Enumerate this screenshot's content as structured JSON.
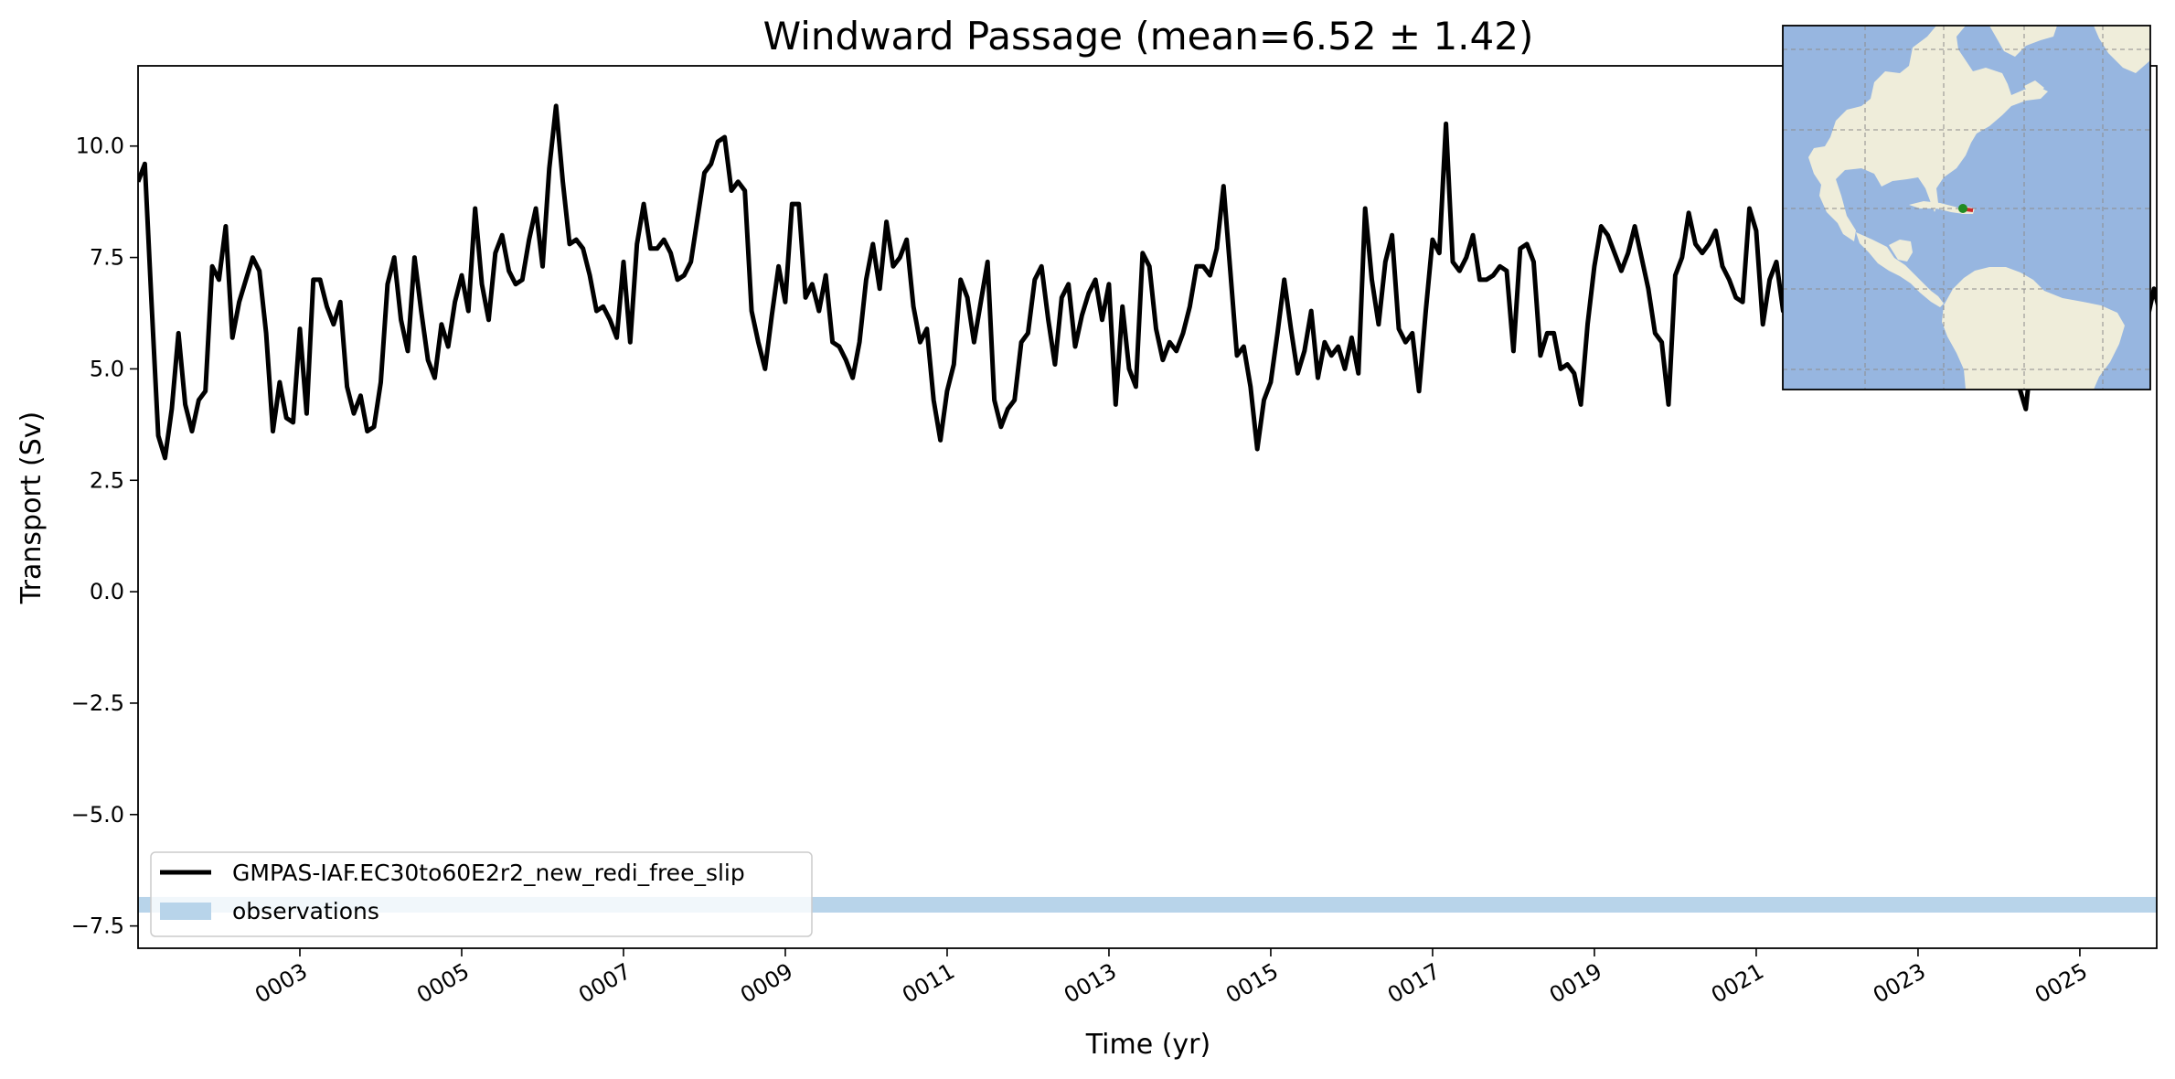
{
  "chart_data": {
    "type": "line",
    "title": "Windward Passage (mean=6.52 ± 1.42)",
    "xlabel": "Time (yr)",
    "ylabel": "Transport (Sv)",
    "xlim": [
      1.0,
      25.95
    ],
    "ylim": [
      -8.0,
      11.8
    ],
    "xticks": [
      3,
      5,
      7,
      9,
      11,
      13,
      15,
      17,
      19,
      21,
      23,
      25
    ],
    "xtick_labels": [
      "0003",
      "0005",
      "0007",
      "0009",
      "0011",
      "0013",
      "0015",
      "0017",
      "0019",
      "0021",
      "0023",
      "0025"
    ],
    "yticks": [
      -7.5,
      -5.0,
      -2.5,
      0.0,
      2.5,
      5.0,
      7.5,
      10.0
    ],
    "ytick_labels": [
      "−7.5",
      "−5.0",
      "−2.5",
      "0.0",
      "2.5",
      "5.0",
      "7.5",
      "10.0"
    ],
    "legend_position": "lower-left",
    "grid": false,
    "series": [
      {
        "name": "GMPAS-IAF.EC30to60E2r2_new_redi_free_slip",
        "color": "#000000",
        "x_start": 1.0,
        "x_step": 0.08333,
        "values": [
          9.2,
          9.6,
          6.5,
          3.5,
          3.0,
          4.1,
          5.8,
          4.2,
          3.6,
          4.3,
          4.5,
          7.3,
          7.0,
          8.2,
          5.7,
          6.5,
          7.0,
          7.5,
          7.2,
          5.8,
          3.6,
          4.7,
          3.9,
          3.8,
          5.9,
          4.0,
          7.0,
          7.0,
          6.4,
          6.0,
          6.5,
          4.6,
          4.0,
          4.4,
          3.6,
          3.7,
          4.7,
          6.9,
          7.5,
          6.1,
          5.4,
          7.5,
          6.3,
          5.2,
          4.8,
          6.0,
          5.5,
          6.5,
          7.1,
          6.3,
          8.6,
          6.9,
          6.1,
          7.6,
          8.0,
          7.2,
          6.9,
          7.0,
          7.9,
          8.6,
          7.3,
          9.5,
          10.9,
          9.2,
          7.8,
          7.9,
          7.7,
          7.1,
          6.3,
          6.4,
          6.1,
          5.7,
          7.4,
          5.6,
          7.8,
          8.7,
          7.7,
          7.7,
          7.9,
          7.6,
          7.0,
          7.1,
          7.4,
          8.4,
          9.4,
          9.6,
          10.1,
          10.2,
          9.0,
          9.2,
          9.0,
          6.3,
          5.6,
          5.0,
          6.2,
          7.3,
          6.5,
          8.7,
          8.7,
          6.6,
          6.9,
          6.3,
          7.1,
          5.6,
          5.5,
          5.2,
          4.8,
          5.6,
          7.0,
          7.8,
          6.8,
          8.3,
          7.3,
          7.5,
          7.9,
          6.4,
          5.6,
          5.9,
          4.3,
          3.4,
          4.5,
          5.1,
          7.0,
          6.6,
          5.6,
          6.5,
          7.4,
          4.3,
          3.7,
          4.1,
          4.3,
          5.6,
          5.8,
          7.0,
          7.3,
          6.1,
          5.1,
          6.6,
          6.9,
          5.5,
          6.2,
          6.7,
          7.0,
          6.1,
          6.9,
          4.2,
          6.4,
          5.0,
          4.6,
          7.6,
          7.3,
          5.9,
          5.2,
          5.6,
          5.4,
          5.8,
          6.4,
          7.3,
          7.3,
          7.1,
          7.7,
          9.1,
          7.2,
          5.3,
          5.5,
          4.6,
          3.2,
          4.3,
          4.7,
          5.8,
          7.0,
          5.9,
          4.9,
          5.4,
          6.3,
          4.8,
          5.6,
          5.3,
          5.5,
          5.0,
          5.7,
          4.9,
          8.6,
          7.0,
          6.0,
          7.4,
          8.0,
          5.9,
          5.6,
          5.8,
          4.5,
          6.3,
          7.9,
          7.6,
          10.5,
          7.4,
          7.2,
          7.5,
          8.0,
          7.0,
          7.0,
          7.1,
          7.3,
          7.2,
          5.4,
          7.7,
          7.8,
          7.4,
          5.3,
          5.8,
          5.8,
          5.0,
          5.1,
          4.9,
          4.2,
          6.0,
          7.3,
          8.2,
          8.0,
          7.6,
          7.2,
          7.6,
          8.2,
          7.5,
          6.8,
          5.8,
          5.6,
          4.2,
          7.1,
          7.5,
          8.5,
          7.8,
          7.6,
          7.8,
          8.1,
          7.3,
          7.0,
          6.6,
          6.5,
          8.6,
          8.1,
          6.0,
          7.0,
          7.4,
          6.3,
          6.9,
          7.2,
          6.8,
          7.5,
          7.0,
          6.4,
          6.9,
          7.6,
          7.3,
          7.0,
          6.5,
          7.2,
          6.8,
          6.2,
          7.0,
          6.4,
          5.7,
          6.9,
          7.3,
          6.1,
          6.6,
          5.8,
          6.5,
          7.1,
          6.4,
          5.5,
          6.0,
          7.2,
          6.7,
          6.1,
          5.3,
          5.9,
          6.4,
          5.1,
          4.6,
          4.1,
          5.5,
          6.1,
          6.9,
          6.4,
          5.7,
          6.6,
          7.0,
          6.2,
          5.8,
          6.7,
          7.1,
          6.5,
          5.9,
          6.3,
          7.0,
          6.4,
          5.6,
          6.1,
          6.8,
          6.2,
          6.3,
          5.6
        ]
      }
    ],
    "bands": [
      {
        "name": "observations",
        "color": "#b8d4ea",
        "y_low": -7.2,
        "y_high": -6.85
      }
    ]
  },
  "inset_map": {
    "land_color": "#efedda",
    "ocean_color": "#97b6e0",
    "transect_color": "#cc2b2b",
    "marker_color": "#228b22"
  }
}
